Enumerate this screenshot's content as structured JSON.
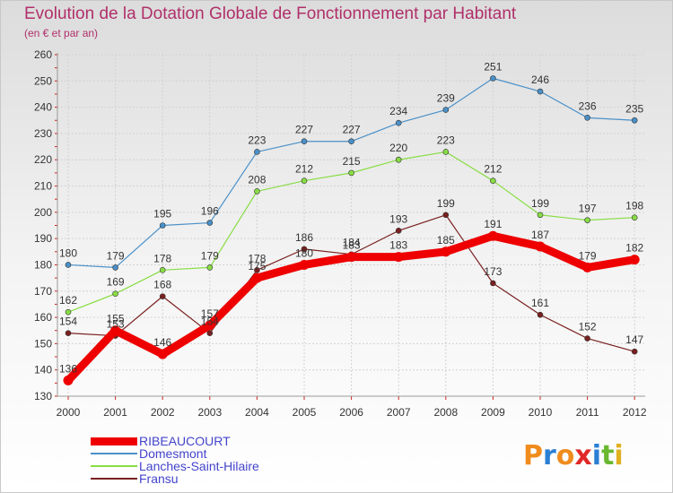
{
  "title": "Evolution de la Dotation Globale de Fonctionnement par Habitant",
  "subtitle": "(en € et par an)",
  "logo": {
    "letters": [
      "P",
      "r",
      "o",
      "x",
      "i",
      "t",
      "i"
    ],
    "colors": [
      "#f08c1e",
      "#2a7fd4",
      "#f08c1e",
      "#e02828",
      "#2a7fd4",
      "#68b830",
      "#e0b020"
    ]
  },
  "chart_data": {
    "type": "line",
    "title": "Evolution de la Dotation Globale de Fonctionnement par Habitant",
    "subtitle": "(en € et par an)",
    "xlabel": "",
    "ylabel": "",
    "ylim": [
      130,
      260
    ],
    "yticks": [
      "130",
      "140",
      "150",
      "160",
      "170",
      "180",
      "190",
      "200",
      "210",
      "220",
      "230",
      "240",
      "250",
      "260"
    ],
    "categories": [
      "2000",
      "2001",
      "2002",
      "2003",
      "2004",
      "2005",
      "2006",
      "2007",
      "2008",
      "2009",
      "2010",
      "2011",
      "2012"
    ],
    "grid": true,
    "legend": "bottom-left",
    "series": [
      {
        "name": "RIBEAUCOURT",
        "color": "#ee0000",
        "thick": true,
        "values": [
          136,
          155,
          146,
          157,
          175,
          180,
          183,
          183,
          185,
          191,
          187,
          179,
          182
        ],
        "labels": [
          "136",
          "155",
          "146",
          "157",
          "175",
          "180",
          "183",
          "183",
          "185",
          "191",
          "187",
          "179",
          "182"
        ]
      },
      {
        "name": "Domesmont",
        "color": "#4a90c8",
        "thick": false,
        "values": [
          180,
          179,
          195,
          196,
          223,
          227,
          227,
          234,
          239,
          251,
          246,
          236,
          235
        ],
        "labels": [
          "180",
          "179",
          "195",
          "196",
          "223",
          "227",
          "227",
          "234",
          "239",
          "251",
          "246",
          "236",
          "235"
        ]
      },
      {
        "name": "Lanches-Saint-Hilaire",
        "color": "#88dd44",
        "thick": false,
        "values": [
          162,
          169,
          178,
          179,
          208,
          212,
          215,
          220,
          223,
          212,
          199,
          197,
          198
        ],
        "labels": [
          "162",
          "169",
          "178",
          "179",
          "208",
          "212",
          "215",
          "220",
          "223",
          "212",
          "199",
          "197",
          "198"
        ]
      },
      {
        "name": "Fransu",
        "color": "#7a1f1f",
        "thick": false,
        "values": [
          154,
          153,
          168,
          154,
          178,
          186,
          184,
          193,
          199,
          173,
          161,
          152,
          147
        ],
        "labels": [
          "154",
          "153",
          "168",
          "154",
          "178",
          "186",
          "184",
          "193",
          "199",
          "173",
          "161",
          "152",
          "147"
        ]
      }
    ]
  }
}
